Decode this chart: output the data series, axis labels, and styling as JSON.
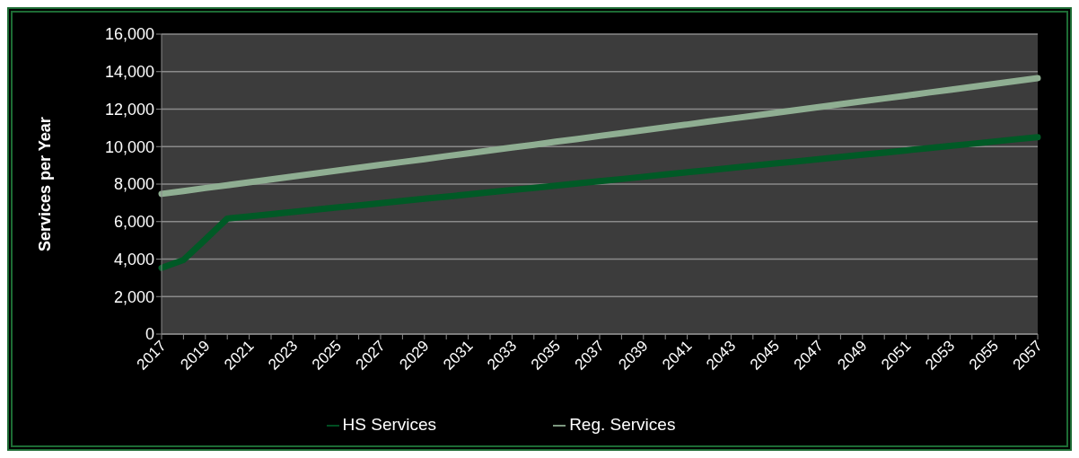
{
  "chart_data": {
    "type": "line",
    "ylabel": "Services per Year",
    "categories": [
      "2017",
      null,
      "2019",
      null,
      "2021",
      null,
      "2023",
      null,
      "2025",
      null,
      "2027",
      null,
      "2029",
      null,
      "2031",
      null,
      "2033",
      null,
      "2035",
      null,
      "2037",
      null,
      "2039",
      null,
      "2041",
      null,
      "2043",
      null,
      "2045",
      null,
      "2047",
      null,
      "2049",
      null,
      "2051",
      null,
      "2053",
      null,
      "2055",
      null,
      "2057"
    ],
    "series": [
      {
        "name": "HS Services",
        "color": "#005a26",
        "values": [
          3530,
          3950,
          5050,
          6160,
          6280,
          6390,
          6510,
          6630,
          6750,
          6860,
          6980,
          7100,
          7220,
          7330,
          7450,
          7570,
          7690,
          7800,
          7920,
          8040,
          8160,
          8270,
          8390,
          8510,
          8630,
          8740,
          8860,
          8980,
          9100,
          9210,
          9330,
          9450,
          9570,
          9680,
          9800,
          9920,
          10040,
          10150,
          10270,
          10390,
          10500
        ]
      },
      {
        "name": "Reg. Services",
        "color": "#8fae92",
        "values": [
          7480,
          7630,
          7790,
          7940,
          8100,
          8250,
          8410,
          8560,
          8720,
          8870,
          9030,
          9180,
          9330,
          9490,
          9640,
          9800,
          9950,
          10100,
          10260,
          10410,
          10570,
          10720,
          10870,
          11030,
          11180,
          11340,
          11490,
          11640,
          11800,
          11950,
          12110,
          12260,
          12420,
          12570,
          12720,
          12880,
          13030,
          13190,
          13340,
          13500,
          13650
        ]
      }
    ],
    "ylim": [
      0,
      16000
    ],
    "yticks": [
      0,
      {
        "value": 2000,
        "label": "2,000"
      },
      {
        "value": 4000,
        "label": "4,000"
      },
      {
        "value": 6000,
        "label": "6,000"
      },
      {
        "value": 8000,
        "label": "8,000"
      },
      {
        "value": 10000,
        "label": "10,000"
      },
      {
        "value": 12000,
        "label": "12,000"
      },
      {
        "value": 14000,
        "label": "14,000"
      },
      {
        "value": 16000,
        "label": "16,000"
      }
    ],
    "grid": "y",
    "legend": "bottom",
    "marker": "none",
    "line_style": "solid"
  }
}
